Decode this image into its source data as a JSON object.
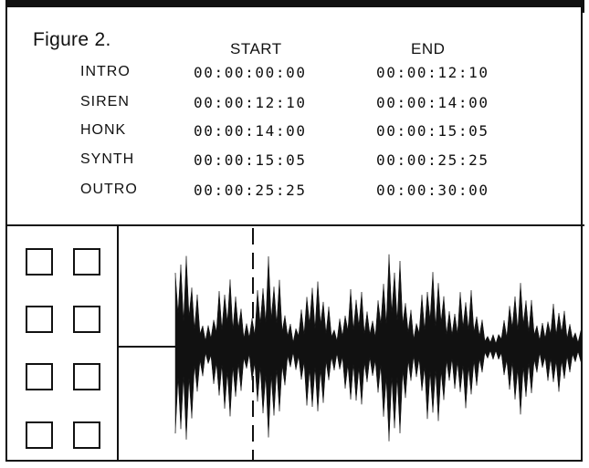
{
  "figure": {
    "title": "Figure 2."
  },
  "table": {
    "header_start": "START",
    "header_end": "END",
    "rows": [
      {
        "name": "INTRO",
        "start": "00:00:00:00",
        "end": "00:00:12:10"
      },
      {
        "name": "SIREN",
        "start": "00:00:12:10",
        "end": "00:00:14:00"
      },
      {
        "name": "HONK",
        "start": "00:00:14:00",
        "end": "00:00:15:05"
      },
      {
        "name": "SYNTH",
        "start": "00:00:15:05",
        "end": "00:00:25:25"
      },
      {
        "name": "OUTRO",
        "start": "00:00:25:25",
        "end": "00:00:30:00"
      }
    ]
  },
  "colors": {
    "ink": "#111111",
    "background": "#ffffff"
  }
}
